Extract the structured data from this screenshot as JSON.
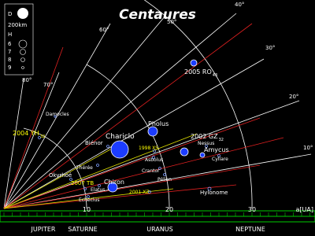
{
  "title": "Centaures",
  "legend": {
    "d_label": "D",
    "d_size": "200km",
    "h_label": "H",
    "h_values": [
      "6",
      "7",
      "8",
      "9"
    ]
  },
  "angles": [
    "10°",
    "20°",
    "30°",
    "40°",
    "50°",
    "60°",
    "70°",
    "80°"
  ],
  "axis": {
    "ticks": [
      "10",
      "20",
      "30"
    ],
    "unit": "a[UA]",
    "planets": [
      "JUPITER",
      "SATURNE",
      "URANUS",
      "NEPTUNE"
    ]
  },
  "objects": [
    {
      "name": "2005 RO",
      "sub": "43"
    },
    {
      "name": "Pholus"
    },
    {
      "name": "Chariclo"
    },
    {
      "name": "Biénor"
    },
    {
      "name": "2002 GZ",
      "sub": "32"
    },
    {
      "name": "Nessus"
    },
    {
      "name": "Amycus"
    },
    {
      "name": "Cyllare"
    },
    {
      "name": "1998 XS"
    },
    {
      "name": "Asbolus"
    },
    {
      "name": "Crantor"
    },
    {
      "name": "Pélion"
    },
    {
      "name": "Hylonome"
    },
    {
      "name": "Chiron"
    },
    {
      "name": "Elatus"
    },
    {
      "name": "Echeclus"
    },
    {
      "name": "Okyrhoé"
    },
    {
      "name": "Thérée"
    },
    {
      "name": "2007 TB"
    },
    {
      "name": "2001 XZ"
    },
    {
      "name": "2004 YH",
      "sub": "32"
    },
    {
      "name": "Damocles"
    }
  ]
}
